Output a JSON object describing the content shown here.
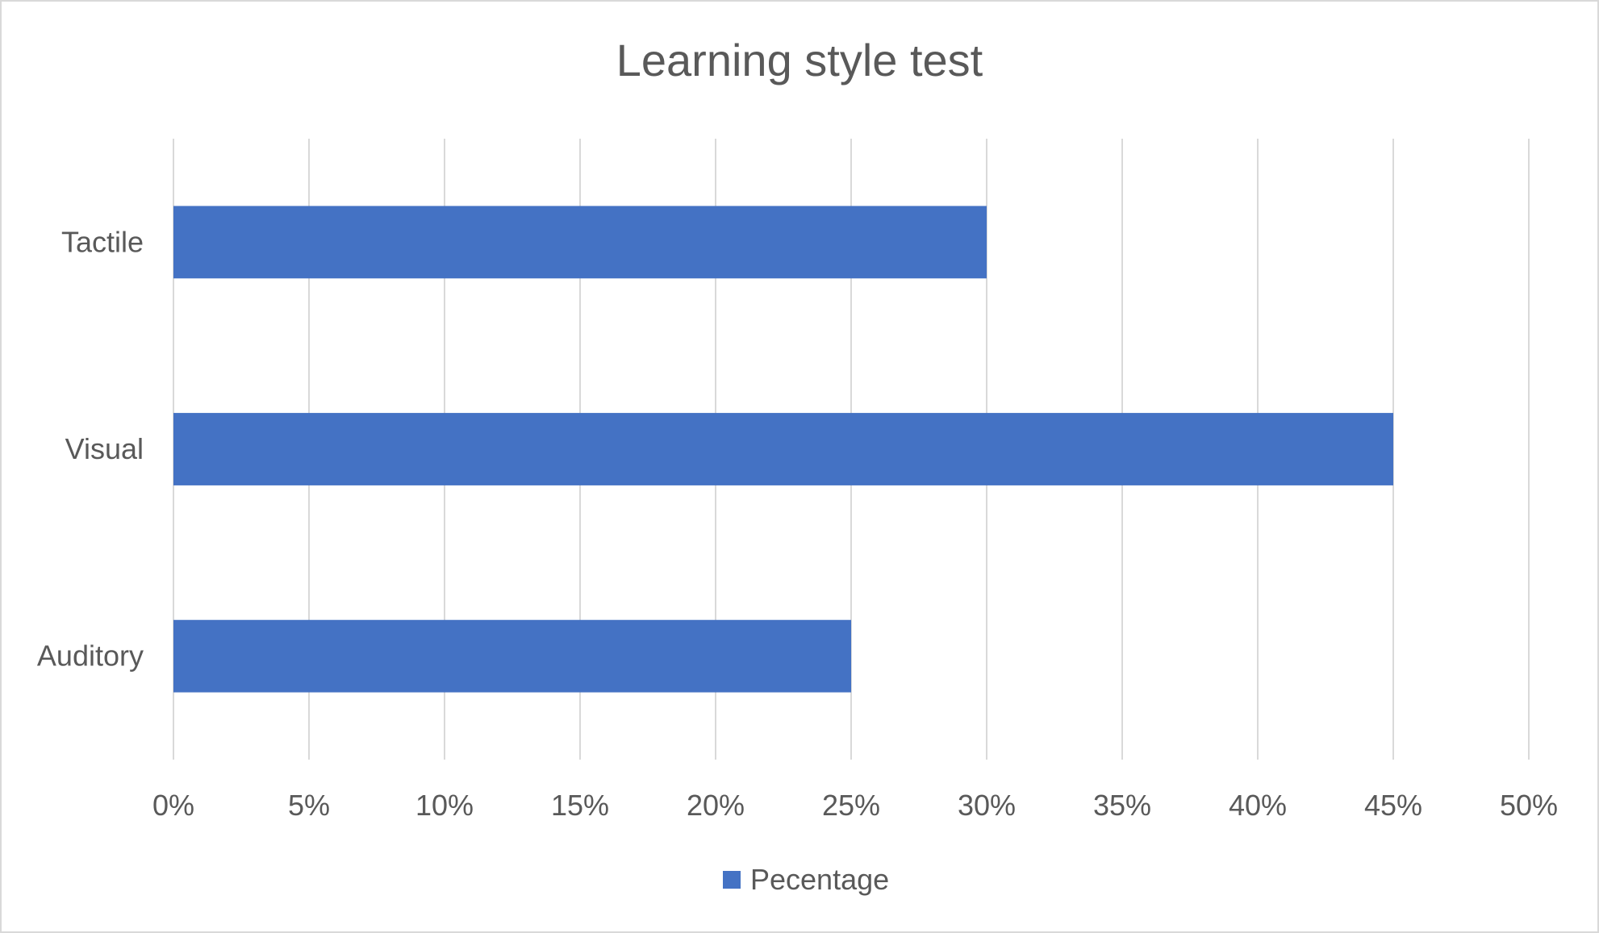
{
  "chart_data": {
    "type": "bar",
    "orientation": "horizontal",
    "title": "Learning style test",
    "xlabel": "",
    "ylabel": "",
    "categories": [
      "Auditory",
      "Visual",
      "Tactile"
    ],
    "series": [
      {
        "name": "Pecentage",
        "values": [
          0.25,
          0.45,
          0.3
        ],
        "color": "#4472c4"
      }
    ],
    "xlim": [
      0,
      0.5
    ],
    "x_ticks": [
      0,
      0.05,
      0.1,
      0.15,
      0.2,
      0.25,
      0.3,
      0.35,
      0.4,
      0.45,
      0.5
    ],
    "x_tick_labels": [
      "0%",
      "5%",
      "10%",
      "15%",
      "20%",
      "25%",
      "30%",
      "35%",
      "40%",
      "45%",
      "50%"
    ],
    "grid": true,
    "gridline_color": "#d9d9d9",
    "legend_position": "bottom"
  }
}
